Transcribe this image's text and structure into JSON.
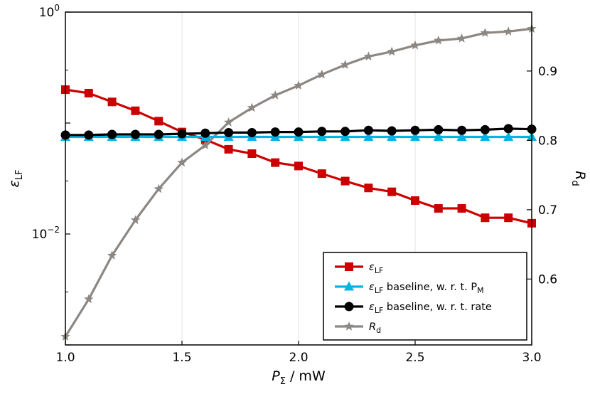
{
  "chart_data": {
    "type": "line",
    "title": "",
    "xlabel": {
      "symbol": "P",
      "subscript": "Σ",
      "unit": " / mW"
    },
    "ylabel_left": {
      "symbol": "ε",
      "subscript": "LF"
    },
    "ylabel_right": {
      "symbol": "R",
      "subscript": "d"
    },
    "x": [
      1.0,
      1.1,
      1.2,
      1.3,
      1.4,
      1.5,
      1.6,
      1.7,
      1.8,
      1.9,
      2.0,
      2.1,
      2.2,
      2.3,
      2.4,
      2.5,
      2.6,
      2.7,
      2.8,
      2.9,
      3.0
    ],
    "xlim": [
      1.0,
      3.0
    ],
    "xticks": [
      1.0,
      1.5,
      2.0,
      2.5,
      3.0
    ],
    "xtick_labels": [
      "1.0",
      "1.5",
      "2.0",
      "2.5",
      "3.0"
    ],
    "y_left_scale": "log",
    "y_left_lim_log10": [
      -3.0,
      0.0
    ],
    "y_left_tick_labels": [
      {
        "base": "10",
        "exp": "0",
        "log10": 0
      },
      {
        "base": "10",
        "exp": "−2",
        "log10": -2
      }
    ],
    "y_right_lim": [
      0.505,
      0.985
    ],
    "y_right_ticks": [
      0.6,
      0.7,
      0.8,
      0.9
    ],
    "y_right_tick_labels": [
      "0.6",
      "0.7",
      "0.8",
      "0.9"
    ],
    "grid": "vertical",
    "legend_position": "bottom-right",
    "series": [
      {
        "name": "ε_LF",
        "label": {
          "symbol": "ε",
          "subscript": "LF",
          "rest": ""
        },
        "axis": "left",
        "color": "#cc0000",
        "marker": "square",
        "values": [
          0.2,
          0.186,
          0.155,
          0.129,
          0.104,
          0.083,
          0.071,
          0.058,
          0.053,
          0.044,
          0.041,
          0.035,
          0.03,
          0.026,
          0.024,
          0.02,
          0.017,
          0.017,
          0.014,
          0.014,
          0.0125
        ]
      },
      {
        "name": "ε_LF baseline, w. r. t. P_M",
        "label": {
          "symbol": "ε",
          "subscript": "LF",
          "rest": " baseline, w. r. t. P",
          "rest_sub": "M"
        },
        "axis": "left",
        "color": "#00b4e6",
        "marker": "triangle",
        "values": [
          0.075,
          0.075,
          0.075,
          0.075,
          0.075,
          0.075,
          0.075,
          0.075,
          0.075,
          0.075,
          0.075,
          0.075,
          0.075,
          0.075,
          0.075,
          0.075,
          0.075,
          0.075,
          0.075,
          0.075,
          0.075
        ]
      },
      {
        "name": "ε_LF baseline, w. r. t. rate",
        "label": {
          "symbol": "ε",
          "subscript": "LF",
          "rest": " baseline, w. r. t. rate"
        },
        "axis": "left",
        "color": "#000000",
        "marker": "circle",
        "values": [
          0.078,
          0.078,
          0.079,
          0.079,
          0.079,
          0.08,
          0.081,
          0.082,
          0.082,
          0.083,
          0.083,
          0.084,
          0.084,
          0.086,
          0.085,
          0.086,
          0.087,
          0.086,
          0.087,
          0.089,
          0.088
        ]
      },
      {
        "name": "R_d",
        "label": {
          "symbol": "R",
          "subscript": "d",
          "rest": ""
        },
        "axis": "right",
        "color": "#8c8782",
        "marker": "star",
        "values": [
          0.517,
          0.571,
          0.634,
          0.685,
          0.73,
          0.768,
          0.793,
          0.826,
          0.847,
          0.865,
          0.879,
          0.895,
          0.909,
          0.921,
          0.928,
          0.937,
          0.944,
          0.947,
          0.955,
          0.957,
          0.961
        ]
      }
    ]
  }
}
